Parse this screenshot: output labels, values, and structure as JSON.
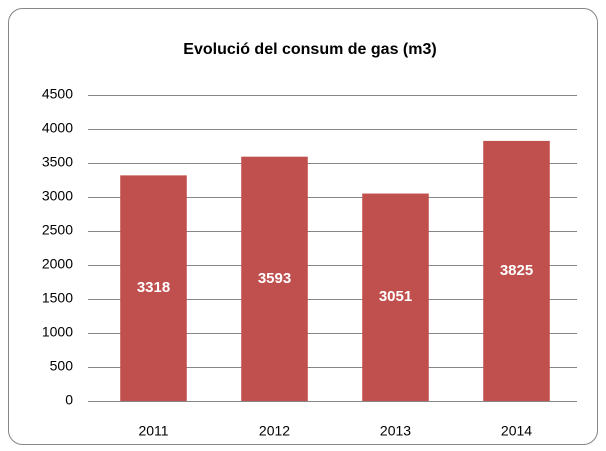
{
  "chart_data": {
    "type": "bar",
    "title": "Evolució del consum de gas (m3)",
    "categories": [
      "2011",
      "2012",
      "2013",
      "2014"
    ],
    "values": [
      3318,
      3593,
      3051,
      3825
    ],
    "color": "#c0504d",
    "ylim": [
      0,
      4500
    ],
    "yticks": [
      0,
      500,
      1000,
      1500,
      2000,
      2500,
      3000,
      3500,
      4000,
      4500
    ],
    "grid": true
  }
}
